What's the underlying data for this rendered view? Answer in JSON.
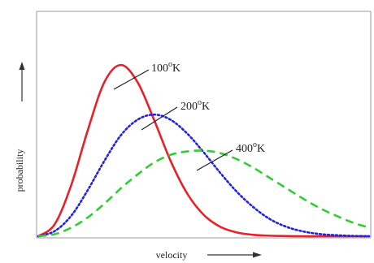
{
  "chart_data": {
    "type": "line",
    "xlabel": "velocity",
    "ylabel": "probability",
    "x_ticks": [],
    "y_ticks": [],
    "grid": false,
    "series": [
      {
        "name": "100°K",
        "label_text": "100",
        "unit_text": "K",
        "color": "#e8202a",
        "dash": "solid",
        "peak_x": 0.25,
        "x": [
          0.0,
          0.05,
          0.1,
          0.15,
          0.2,
          0.25,
          0.3,
          0.35,
          0.4,
          0.45,
          0.5,
          0.55,
          0.6,
          0.65,
          0.7,
          0.75,
          0.8,
          0.85,
          0.9,
          0.95,
          1.0
        ],
        "y": [
          0.0,
          0.07,
          0.3,
          0.62,
          0.9,
          1.0,
          0.9,
          0.68,
          0.44,
          0.25,
          0.125,
          0.055,
          0.022,
          0.008,
          0.003,
          0.001,
          0.0,
          0.0,
          0.0,
          0.0,
          0.0
        ]
      },
      {
        "name": "200°K",
        "label_text": "200",
        "unit_text": "K",
        "color": "#2222dd",
        "dash": "dotted",
        "peak_x": 0.35,
        "x": [
          0.0,
          0.05,
          0.1,
          0.15,
          0.2,
          0.25,
          0.3,
          0.35,
          0.4,
          0.45,
          0.5,
          0.55,
          0.6,
          0.65,
          0.7,
          0.75,
          0.8,
          0.85,
          0.9,
          0.95,
          1.0
        ],
        "y": [
          0.0,
          0.03,
          0.12,
          0.27,
          0.44,
          0.59,
          0.68,
          0.71,
          0.68,
          0.6,
          0.49,
          0.37,
          0.26,
          0.17,
          0.1,
          0.055,
          0.028,
          0.013,
          0.006,
          0.002,
          0.0
        ]
      },
      {
        "name": "400°K",
        "label_text": "400",
        "unit_text": "K",
        "color": "#33cc33",
        "dash": "dashed",
        "peak_x": 0.5,
        "x": [
          0.0,
          0.05,
          0.1,
          0.15,
          0.2,
          0.25,
          0.3,
          0.35,
          0.4,
          0.45,
          0.5,
          0.55,
          0.6,
          0.65,
          0.7,
          0.75,
          0.8,
          0.85,
          0.9,
          0.95,
          1.0
        ],
        "y": [
          0.0,
          0.012,
          0.05,
          0.11,
          0.19,
          0.28,
          0.36,
          0.43,
          0.475,
          0.495,
          0.5,
          0.485,
          0.45,
          0.4,
          0.34,
          0.28,
          0.22,
          0.165,
          0.12,
          0.08,
          0.05
        ]
      }
    ]
  }
}
